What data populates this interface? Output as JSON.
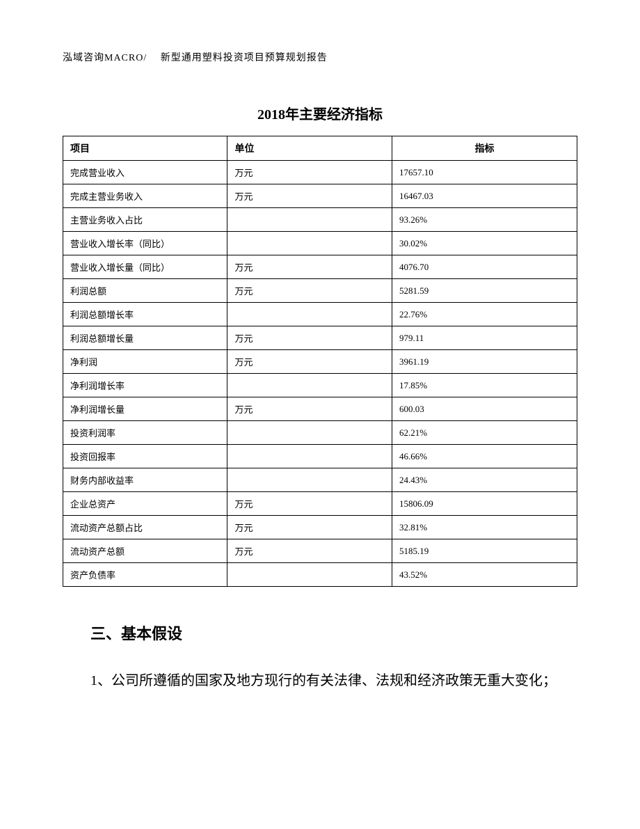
{
  "header": {
    "text": "泓域咨询MACRO/　 新型通用塑料投资项目预算规划报告"
  },
  "table": {
    "title": "2018年主要经济指标",
    "columns": [
      "项目",
      "单位",
      "指标"
    ],
    "rows": [
      [
        "完成营业收入",
        "万元",
        "17657.10"
      ],
      [
        "完成主营业务收入",
        "万元",
        "16467.03"
      ],
      [
        "主营业务收入占比",
        "",
        "93.26%"
      ],
      [
        "营业收入增长率（同比）",
        "",
        "30.02%"
      ],
      [
        "营业收入增长量（同比）",
        "万元",
        "4076.70"
      ],
      [
        "利润总额",
        "万元",
        "5281.59"
      ],
      [
        "利润总额增长率",
        "",
        "22.76%"
      ],
      [
        "利润总额增长量",
        "万元",
        "979.11"
      ],
      [
        "净利润",
        "万元",
        "3961.19"
      ],
      [
        "净利润增长率",
        "",
        "17.85%"
      ],
      [
        "净利润增长量",
        "万元",
        "600.03"
      ],
      [
        "投资利润率",
        "",
        "62.21%"
      ],
      [
        "投资回报率",
        "",
        "46.66%"
      ],
      [
        "财务内部收益率",
        "",
        "24.43%"
      ],
      [
        "企业总资产",
        "万元",
        "15806.09"
      ],
      [
        "流动资产总额占比",
        "万元",
        "32.81%"
      ],
      [
        "流动资产总额",
        "万元",
        "5185.19"
      ],
      [
        "资产负债率",
        "",
        "43.52%"
      ]
    ]
  },
  "section": {
    "heading": "三、基本假设",
    "body": "1、公司所遵循的国家及地方现行的有关法律、法规和经济政策无重大变化；"
  }
}
